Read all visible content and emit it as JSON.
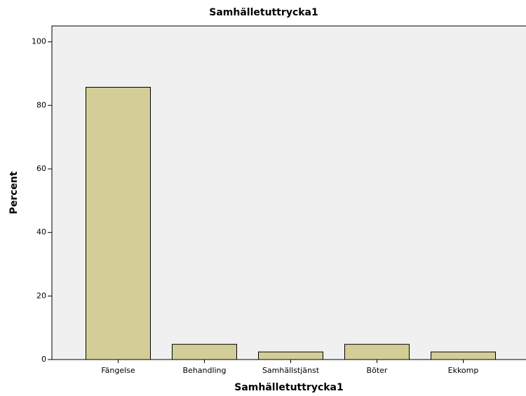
{
  "chart_data": {
    "type": "bar",
    "title": "Samhälletuttrycka1",
    "x_label": "Samhälletuttrycka1",
    "y_label": "Percent",
    "categories": [
      "Fängelse",
      "Behandling",
      "Samhällstjänst",
      "Böter",
      "Ekkomp"
    ],
    "values": [
      85.7,
      4.8,
      2.4,
      4.8,
      2.4
    ],
    "color": "#d3ce97",
    "ylim": [
      0,
      105
    ],
    "yticks": [
      0,
      20,
      40,
      60,
      80,
      100
    ],
    "grid": false
  }
}
